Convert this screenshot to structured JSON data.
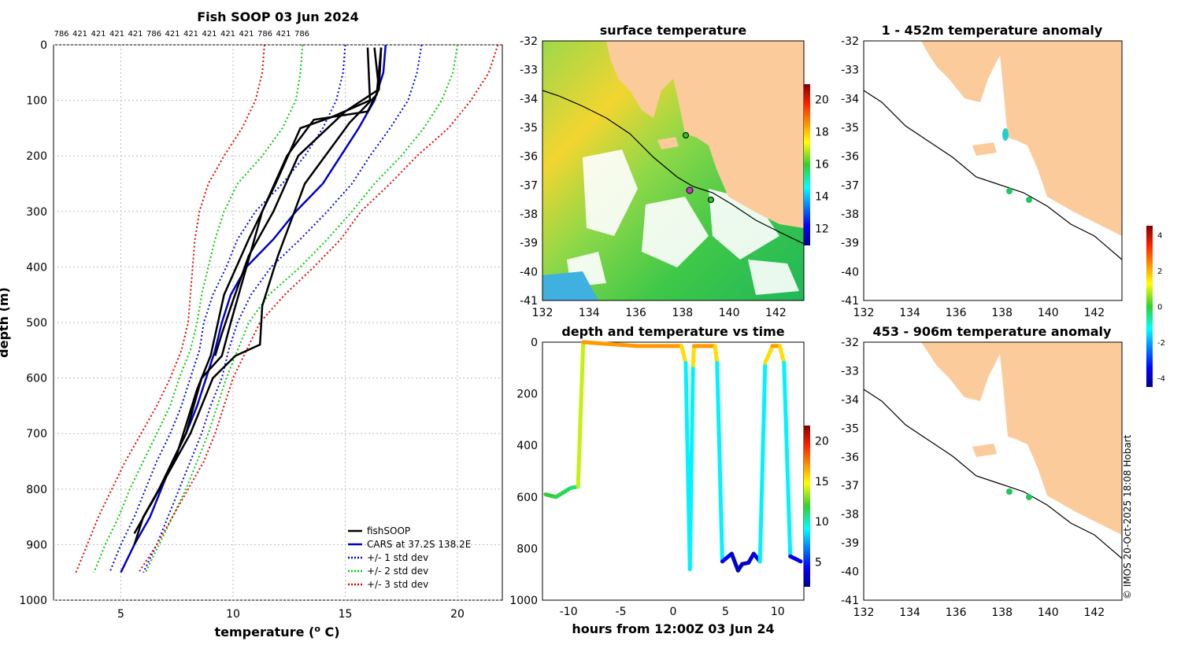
{
  "colors": {
    "land": "#fbcb9b",
    "ocean": "#ffffff",
    "fish": "#000000",
    "cars": "#0000cc",
    "sd1": "#0000ff",
    "sd2": "#00cc00",
    "sd3": "#ee0000",
    "grid": "#bbbbbb"
  },
  "profile": {
    "title": "Fish SOOP 03 Jun 2024",
    "xlabel": "temperature (",
    "xlabel_sup": "o",
    "xlabel_end": " C)",
    "ylabel": "depth (m)",
    "top_labels": [
      "786",
      "421",
      "421",
      "421",
      "421",
      "786",
      "421",
      "421",
      "421",
      "421",
      "421",
      "786",
      "421",
      "786"
    ],
    "legend": [
      "fishSOOP",
      "CARS at 37.2S 138.2E",
      "+/- 1 std dev",
      "+/- 2 std dev",
      "+/- 3 std dev"
    ]
  },
  "sst_map": {
    "title": "surface temperature"
  },
  "anom_map1": {
    "title": "1 - 452m temperature anomaly"
  },
  "anom_map2": {
    "title": "453 - 906m temperature anomaly"
  },
  "timeseries": {
    "title": "depth and temperature vs time",
    "xlabel": "hours from 12:00Z 03 Jun 24"
  },
  "credit": "© IMOS 20-Oct-2025 18:08 Hobart",
  "chart_data": [
    {
      "type": "line",
      "title": "Fish SOOP 03 Jun 2024",
      "xlabel": "temperature (o C)",
      "ylabel": "depth (m)",
      "xlim": [
        2,
        22
      ],
      "ylim": [
        1000,
        0
      ],
      "xticks": [
        5,
        10,
        15,
        20
      ],
      "yticks": [
        0,
        100,
        200,
        300,
        400,
        500,
        600,
        700,
        800,
        900,
        1000
      ],
      "grid": true,
      "legend_position": "bottom-right",
      "series": [
        {
          "name": "CARS at 37.2S 138.2E",
          "depth": [
            0,
            50,
            100,
            150,
            200,
            250,
            300,
            350,
            400,
            450,
            500,
            550,
            600,
            650,
            700,
            750,
            800,
            850,
            900,
            950
          ],
          "temp": [
            16.8,
            16.7,
            16.3,
            15.6,
            14.8,
            14.0,
            12.8,
            11.8,
            10.6,
            9.9,
            9.5,
            9.2,
            8.8,
            8.4,
            7.9,
            7.3,
            6.8,
            6.3,
            5.6,
            5.0
          ]
        },
        {
          "name": "+/- 1 std dev (warm)",
          "depth": [
            0,
            50,
            100,
            150,
            200,
            250,
            300,
            350,
            400,
            450,
            500,
            550,
            600,
            650,
            700,
            750,
            800,
            850,
            900,
            950
          ],
          "temp": [
            18.4,
            18.2,
            17.8,
            17.0,
            16.1,
            15.3,
            14.2,
            13.0,
            11.7,
            10.8,
            10.2,
            9.8,
            9.5,
            9.0,
            8.6,
            8.1,
            7.6,
            7.1,
            6.6,
            6.0
          ]
        },
        {
          "name": "+/- 1 std dev (cold)",
          "depth": [
            0,
            50,
            100,
            150,
            200,
            250,
            300,
            350,
            400,
            450,
            500,
            550,
            600,
            650,
            700,
            750,
            800,
            850,
            900,
            950
          ],
          "temp": [
            15.0,
            14.9,
            14.6,
            14.0,
            13.2,
            12.2,
            11.0,
            10.2,
            9.7,
            9.1,
            8.7,
            8.5,
            8.1,
            7.7,
            7.2,
            6.6,
            6.1,
            5.6,
            5.0,
            4.5
          ]
        },
        {
          "name": "+/- 2 std dev (warm)",
          "depth": [
            0,
            50,
            100,
            150,
            200,
            250,
            300,
            350,
            400,
            450,
            500,
            550,
            600,
            650,
            700,
            750,
            800,
            850,
            900,
            950
          ],
          "temp": [
            20.0,
            19.8,
            19.3,
            18.5,
            17.5,
            16.3,
            15.3,
            14.2,
            13.0,
            11.6,
            10.7,
            10.2,
            9.7,
            9.3,
            8.9,
            8.4,
            7.9,
            7.3,
            6.7,
            6.1
          ]
        },
        {
          "name": "+/- 2 std dev (cold)",
          "depth": [
            0,
            50,
            100,
            150,
            200,
            250,
            300,
            350,
            400,
            450,
            500,
            550,
            600,
            650,
            700,
            750,
            800,
            850,
            900,
            950
          ],
          "temp": [
            13.1,
            13.0,
            12.8,
            12.2,
            11.3,
            10.2,
            9.6,
            9.2,
            8.9,
            8.6,
            8.4,
            8.1,
            7.6,
            7.2,
            6.6,
            6.0,
            5.4,
            4.9,
            4.3,
            3.8
          ]
        },
        {
          "name": "+/- 3 std dev (warm)",
          "depth": [
            0,
            50,
            100,
            150,
            200,
            250,
            300,
            350,
            400,
            450,
            500,
            550,
            600,
            650,
            700,
            750,
            800,
            850,
            900,
            950
          ],
          "temp": [
            21.8,
            21.4,
            20.6,
            19.6,
            18.2,
            17.0,
            15.7,
            14.8,
            13.6,
            12.3,
            11.2,
            10.6,
            10.0,
            9.6,
            9.2,
            8.7,
            8.0,
            7.3,
            6.6,
            5.8
          ]
        },
        {
          "name": "+/- 3 std dev (cold)",
          "depth": [
            0,
            50,
            100,
            150,
            200,
            250,
            300,
            350,
            400,
            450,
            500,
            550,
            600,
            650,
            700,
            750,
            800,
            850,
            900,
            950
          ],
          "temp": [
            11.4,
            11.3,
            11.0,
            10.4,
            9.6,
            8.9,
            8.5,
            8.3,
            8.2,
            8.1,
            8.0,
            7.7,
            7.2,
            6.6,
            5.9,
            5.2,
            4.6,
            4.0,
            3.5,
            3.0
          ]
        },
        {
          "name": "fishSOOP cast 1",
          "depth": [
            5,
            80,
            120,
            135,
            200,
            300,
            400,
            500,
            560,
            600,
            700,
            800,
            850,
            900
          ],
          "temp": [
            16.6,
            16.5,
            16.0,
            13.6,
            12.4,
            11.3,
            10.6,
            9.9,
            9.5,
            8.6,
            7.9,
            6.7,
            6.0,
            5.6
          ]
        },
        {
          "name": "fishSOOP cast 2",
          "depth": [
            5,
            100,
            130,
            150,
            250,
            350,
            450,
            560,
            620,
            750,
            880
          ],
          "temp": [
            16.0,
            16.1,
            14.4,
            13.0,
            11.9,
            10.7,
            9.6,
            9.0,
            8.4,
            7.4,
            5.6
          ]
        },
        {
          "name": "fishSOOP cast 3",
          "depth": [
            5,
            90,
            140,
            250,
            380,
            470,
            540,
            560,
            600,
            700,
            830
          ],
          "temp": [
            16.6,
            16.4,
            15.2,
            13.2,
            12.0,
            11.3,
            11.2,
            10.1,
            9.1,
            8.1,
            6.3
          ]
        },
        {
          "name": "fishSOOP cast 4",
          "depth": [
            5,
            80,
            120,
            200,
            300,
            380,
            460,
            520,
            560
          ],
          "temp": [
            16.3,
            16.5,
            15.0,
            12.9,
            11.8,
            10.7,
            10.0,
            9.5,
            9.2
          ]
        }
      ]
    },
    {
      "type": "line",
      "title": "depth and temperature vs time",
      "xlabel": "hours from 12:00Z 03 Jun 24",
      "xlim": [
        -12.5,
        12.5
      ],
      "ylim": [
        1000,
        0
      ],
      "xticks": [
        -10,
        -5,
        0,
        5,
        10
      ],
      "yticks": [
        0,
        200,
        400,
        600,
        800,
        1000
      ],
      "colorbar_ticks": [
        5,
        10,
        15,
        20
      ],
      "series": [
        {
          "name": "depth track",
          "hours": [
            -12.2,
            -11.2,
            -9.8,
            -9.1,
            -8.6,
            -3.5,
            -0.6,
            0.8,
            1.2,
            1.6,
            1.9,
            2.0,
            2.4,
            4.0,
            4.2,
            4.7,
            5.6,
            6.2,
            6.6,
            7.2,
            7.7,
            8.3,
            8.8,
            9.5,
            10.2,
            10.6,
            11.2,
            12.2
          ],
          "depth": [
            590,
            600,
            565,
            560,
            0,
            15,
            15,
            15,
            80,
            880,
            90,
            15,
            15,
            15,
            80,
            850,
            820,
            885,
            860,
            855,
            820,
            850,
            80,
            15,
            15,
            80,
            830,
            850
          ],
          "temp": [
            12,
            12,
            11,
            11,
            17,
            17,
            17,
            17,
            14,
            4,
            14,
            17,
            17,
            17,
            14,
            4,
            4,
            3,
            3,
            3,
            4,
            4,
            14,
            17,
            17,
            14,
            4,
            4
          ]
        }
      ]
    },
    {
      "type": "heatmap",
      "title": "surface temperature",
      "xlim": [
        132,
        143.2
      ],
      "ylim": [
        -41,
        -32
      ],
      "xticks": [
        132,
        134,
        136,
        138,
        140,
        142
      ],
      "yticks": [
        -32,
        -33,
        -34,
        -35,
        -36,
        -37,
        -38,
        -39,
        -40,
        -41
      ],
      "colorbar_ticks": [
        12,
        14,
        16,
        18,
        20
      ]
    },
    {
      "type": "scatter",
      "title": "1 - 452m temperature anomaly",
      "xlim": [
        132,
        143.2
      ],
      "ylim": [
        -41,
        -32
      ],
      "xticks": [
        132,
        134,
        136,
        138,
        140,
        142
      ],
      "yticks": [
        -32,
        -33,
        -34,
        -35,
        -36,
        -37,
        -38,
        -39,
        -40,
        -41
      ],
      "colorbar_ticks": [
        -4,
        -2,
        0,
        2,
        4
      ],
      "points": [
        {
          "lon": 138.1,
          "lat": -35.2,
          "anom": -1.5
        },
        {
          "lon": 138.2,
          "lat": -37.2,
          "anom": -0.5
        },
        {
          "lon": 139.1,
          "lat": -37.5,
          "anom": 0.2
        }
      ]
    },
    {
      "type": "scatter",
      "title": "453 - 906m temperature anomaly",
      "xlim": [
        132,
        143.2
      ],
      "ylim": [
        -41,
        -32
      ],
      "xticks": [
        132,
        134,
        136,
        138,
        140,
        142
      ],
      "yticks": [
        -32,
        -33,
        -34,
        -35,
        -36,
        -37,
        -38,
        -39,
        -40,
        -41
      ],
      "points": [
        {
          "lon": 138.2,
          "lat": -37.2,
          "anom": 0.3
        },
        {
          "lon": 139.1,
          "lat": -37.4,
          "anom": 0.2
        }
      ]
    }
  ]
}
